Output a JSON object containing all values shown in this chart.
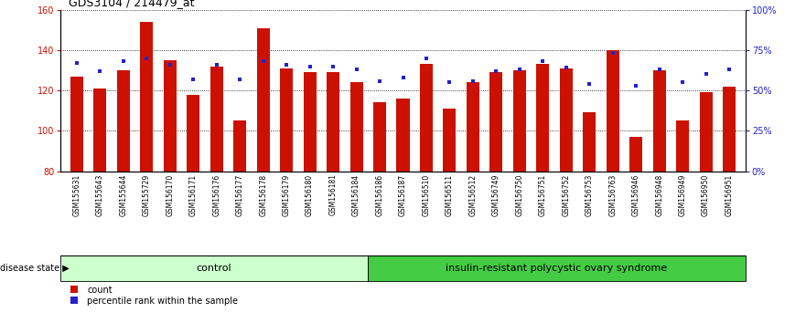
{
  "title": "GDS3104 / 214479_at",
  "samples": [
    "GSM155631",
    "GSM155643",
    "GSM155644",
    "GSM155729",
    "GSM156170",
    "GSM156171",
    "GSM156176",
    "GSM156177",
    "GSM156178",
    "GSM156179",
    "GSM156180",
    "GSM156181",
    "GSM156184",
    "GSM156186",
    "GSM156187",
    "GSM156510",
    "GSM156511",
    "GSM156512",
    "GSM156749",
    "GSM156750",
    "GSM156751",
    "GSM156752",
    "GSM156753",
    "GSM156763",
    "GSM156946",
    "GSM156948",
    "GSM156949",
    "GSM156950",
    "GSM156951"
  ],
  "bar_values": [
    127,
    121,
    130,
    154,
    135,
    118,
    132,
    105,
    151,
    131,
    129,
    129,
    124,
    114,
    116,
    133,
    111,
    124,
    129,
    130,
    133,
    131,
    109,
    140,
    97,
    130,
    105,
    119,
    122
  ],
  "percentile_values": [
    67,
    62,
    68,
    70,
    66,
    57,
    66,
    57,
    68,
    66,
    65,
    65,
    63,
    56,
    58,
    70,
    55,
    56,
    62,
    63,
    68,
    64,
    54,
    73,
    53,
    63,
    55,
    60,
    63
  ],
  "control_count": 13,
  "disease_count": 16,
  "control_label": "control",
  "disease_label": "insulin-resistant polycystic ovary syndrome",
  "disease_state_label": "disease state",
  "bar_color": "#cc1100",
  "percentile_color": "#2222cc",
  "control_bg": "#ccffcc",
  "disease_bg": "#44cc44",
  "ylim_left": [
    80,
    160
  ],
  "ylim_right": [
    0,
    100
  ],
  "yticks_left": [
    80,
    100,
    120,
    140,
    160
  ],
  "yticks_right": [
    0,
    25,
    50,
    75,
    100
  ],
  "ytick_labels_right": [
    "0%",
    "25%",
    "50%",
    "75%",
    "100%"
  ],
  "bar_width": 0.55,
  "legend_count_label": "count",
  "legend_percentile_label": "percentile rank within the sample",
  "n_samples": 29,
  "fig_width": 8.81,
  "fig_height": 3.54,
  "dpi": 100
}
